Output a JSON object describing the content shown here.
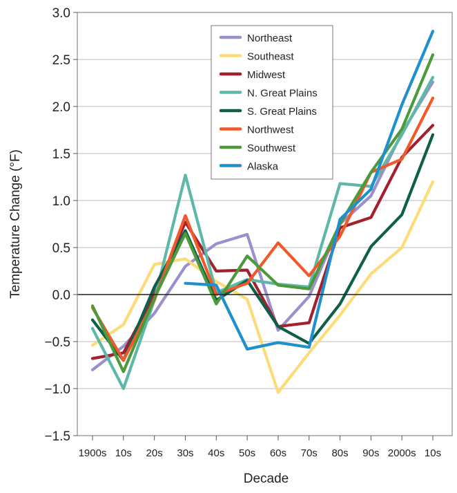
{
  "chart_data": {
    "type": "line",
    "title": "",
    "xlabel": "Decade",
    "ylabel": "Temperature Change (°F)",
    "categories": [
      "1900s",
      "10s",
      "20s",
      "30s",
      "40s",
      "50s",
      "60s",
      "70s",
      "80s",
      "90s",
      "2000s",
      "10s"
    ],
    "ylim": [
      -1.5,
      3.0
    ],
    "yticks": [
      "3.0",
      "2.5",
      "2.0",
      "1.5",
      "1.0",
      "0.5",
      "0.0",
      "−0.5",
      "−1.0",
      "−1.5"
    ],
    "ytick_values": [
      3.0,
      2.5,
      2.0,
      1.5,
      1.0,
      0.5,
      0.0,
      -0.5,
      -1.0,
      -1.5
    ],
    "grid": "horizontal",
    "reference_line": 0.0,
    "legend_position": "top-right",
    "series": [
      {
        "name": "Northeast",
        "color": "#9b8fcc",
        "values": [
          -0.8,
          -0.55,
          -0.2,
          0.3,
          0.54,
          0.64,
          -0.38,
          -0.02,
          0.75,
          1.05,
          1.72,
          2.26
        ]
      },
      {
        "name": "Southeast",
        "color": "#fddc78",
        "values": [
          -0.54,
          -0.32,
          0.32,
          0.38,
          0.14,
          -0.05,
          -1.04,
          -0.62,
          -0.22,
          0.22,
          0.5,
          1.2
        ]
      },
      {
        "name": "Midwest",
        "color": "#a3202d",
        "values": [
          -0.68,
          -0.62,
          0.0,
          0.77,
          0.25,
          0.26,
          -0.34,
          -0.3,
          0.71,
          0.82,
          1.46,
          1.8
        ]
      },
      {
        "name": "N. Great Plains",
        "color": "#5db8a8",
        "values": [
          -0.36,
          -1.0,
          -0.06,
          1.27,
          0.02,
          0.16,
          0.11,
          0.08,
          1.18,
          1.15,
          1.7,
          2.31
        ]
      },
      {
        "name": "S. Great Plains",
        "color": "#0e5f4a",
        "values": [
          -0.27,
          -0.7,
          0.08,
          0.68,
          -0.06,
          0.15,
          -0.34,
          -0.52,
          -0.1,
          0.51,
          0.85,
          1.7
        ]
      },
      {
        "name": "Northwest",
        "color": "#f05a2a",
        "values": [
          -0.14,
          -0.7,
          -0.06,
          0.84,
          0.0,
          0.12,
          0.55,
          0.2,
          0.62,
          1.3,
          1.44,
          2.09
        ]
      },
      {
        "name": "Southwest",
        "color": "#4c9a3c",
        "values": [
          -0.12,
          -0.82,
          -0.04,
          0.65,
          -0.1,
          0.41,
          0.1,
          0.06,
          0.75,
          1.3,
          1.76,
          2.55
        ]
      },
      {
        "name": "Alaska",
        "color": "#1f8fcf",
        "values": [
          null,
          null,
          null,
          0.12,
          0.1,
          -0.58,
          -0.51,
          -0.56,
          0.8,
          1.12,
          2.02,
          2.8
        ]
      }
    ]
  }
}
